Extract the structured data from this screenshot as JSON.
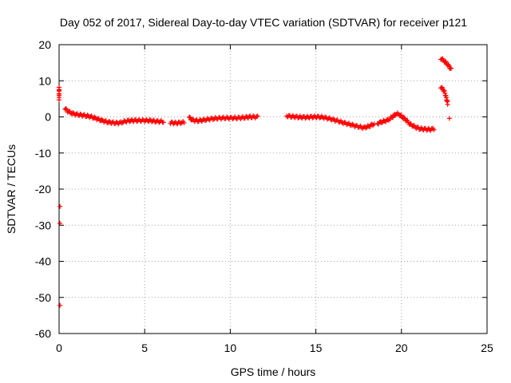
{
  "chart_data": {
    "type": "scatter",
    "title": "Day 052 of 2017, Sidereal Day-to-day VTEC variation (SDTVAR) for receiver p121",
    "xlabel": "GPS time / hours",
    "ylabel": "SDTVAR / TECUs",
    "xlim": [
      0,
      25
    ],
    "ylim": [
      -60,
      20
    ],
    "xticks": [
      0,
      5,
      10,
      15,
      20,
      25
    ],
    "yticks": [
      20,
      10,
      0,
      -10,
      -20,
      -30,
      -40,
      -50,
      -60
    ],
    "grid": true,
    "marker": "plus",
    "series": [
      {
        "name": "SDTVAR",
        "color": "#ff0000",
        "segments": [
          {
            "x": [
              0.0,
              0.0
            ],
            "y": [
              8.2,
              5.0
            ]
          },
          {
            "x": [
              0.05
            ],
            "y": [
              -24.8
            ]
          },
          {
            "x": [
              0.05
            ],
            "y": [
              -29.5
            ]
          },
          {
            "x": [
              0.05
            ],
            "y": [
              -52.2
            ]
          },
          {
            "x": [
              0.35,
              0.5,
              0.75,
              1.0,
              1.3,
              1.6,
              1.9,
              2.2,
              2.5,
              2.8,
              3.1,
              3.4,
              3.6,
              3.8,
              4.0,
              4.3,
              4.6,
              5.0,
              5.3,
              5.6,
              5.9,
              6.1
            ],
            "y": [
              2.3,
              1.6,
              1.0,
              0.7,
              0.5,
              0.3,
              0.0,
              -0.5,
              -1.0,
              -1.4,
              -1.6,
              -1.7,
              -1.6,
              -1.3,
              -1.1,
              -1.0,
              -1.0,
              -1.0,
              -1.0,
              -1.2,
              -1.3,
              -1.3
            ]
          },
          {
            "x": [
              6.5,
              6.8,
              7.1,
              7.3
            ],
            "y": [
              -1.6,
              -1.7,
              -1.6,
              -1.5
            ]
          },
          {
            "x": [
              7.6,
              7.8,
              8.1,
              8.4,
              8.8,
              9.2,
              9.6,
              10.0,
              10.4,
              10.8,
              11.1,
              11.4,
              11.6
            ],
            "y": [
              -0.2,
              -0.9,
              -1.1,
              -0.9,
              -0.6,
              -0.4,
              -0.3,
              -0.3,
              -0.3,
              -0.2,
              0.0,
              0.0,
              0.0
            ]
          },
          {
            "x": [
              13.3,
              13.6,
              13.9,
              14.2,
              14.5,
              14.8,
              15.1,
              15.4,
              15.8,
              16.2,
              16.6,
              17.0,
              17.4,
              17.8,
              18.1,
              18.4
            ],
            "y": [
              0.3,
              0.1,
              0.0,
              -0.1,
              -0.1,
              0.0,
              0.0,
              -0.1,
              -0.5,
              -1.0,
              -1.6,
              -2.1,
              -2.6,
              -3.0,
              -2.6,
              -1.9
            ]
          },
          {
            "x": [
              18.6,
              18.9,
              19.2,
              19.5,
              19.7,
              19.9,
              20.1,
              20.3,
              20.5,
              20.8,
              21.1,
              21.4,
              21.7,
              21.9
            ],
            "y": [
              -1.8,
              -1.3,
              -0.9,
              0.1,
              0.9,
              0.6,
              -0.2,
              -1.0,
              -2.0,
              -2.8,
              -3.3,
              -3.4,
              -3.5,
              -3.3
            ]
          },
          {
            "x": [
              22.3,
              22.5,
              22.7,
              22.9
            ],
            "y": [
              16.2,
              15.5,
              14.5,
              13.2
            ]
          },
          {
            "x": [
              22.3,
              22.5,
              22.6,
              22.7
            ],
            "y": [
              8.3,
              7.2,
              5.6,
              3.7
            ]
          },
          {
            "x": [
              22.8
            ],
            "y": [
              -0.4
            ]
          }
        ]
      }
    ]
  }
}
